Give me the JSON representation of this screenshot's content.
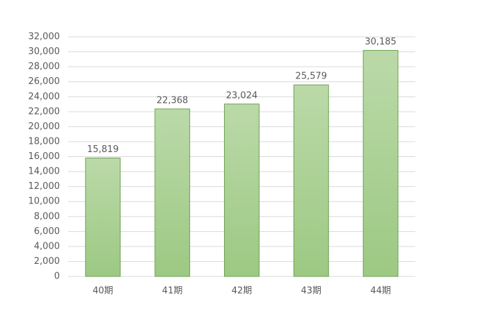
{
  "chart_data": {
    "type": "bar",
    "categories": [
      "40期",
      "41期",
      "42期",
      "43期",
      "44期"
    ],
    "values": [
      15819,
      22368,
      23024,
      25579,
      30185
    ],
    "value_labels": [
      "15,819",
      "22,368",
      "23,024",
      "25,579",
      "30,185"
    ],
    "color": "#9dc983",
    "ylim": [
      0,
      32000
    ],
    "yticks": [
      0,
      {
        "value": 2000,
        "label": "2,000"
      },
      {
        "value": 4000,
        "label": "4,000"
      },
      {
        "value": 6000,
        "label": "6,000"
      },
      {
        "value": 8000,
        "label": "8,000"
      },
      {
        "value": 10000,
        "label": "10,000"
      },
      {
        "value": 12000,
        "label": "12,000"
      },
      {
        "value": 14000,
        "label": "14,000"
      },
      {
        "value": 16000,
        "label": "16,000"
      },
      {
        "value": 18000,
        "label": "18,000"
      },
      {
        "value": 20000,
        "label": "20,000"
      },
      {
        "value": 22000,
        "label": "22,000"
      },
      {
        "value": 24000,
        "label": "24,000"
      },
      {
        "value": 26000,
        "label": "26,000"
      },
      {
        "value": 28000,
        "label": "28,000"
      },
      {
        "value": 30000,
        "label": "30,000"
      },
      {
        "value": 32000,
        "label": "32,000"
      }
    ],
    "grid": true
  }
}
